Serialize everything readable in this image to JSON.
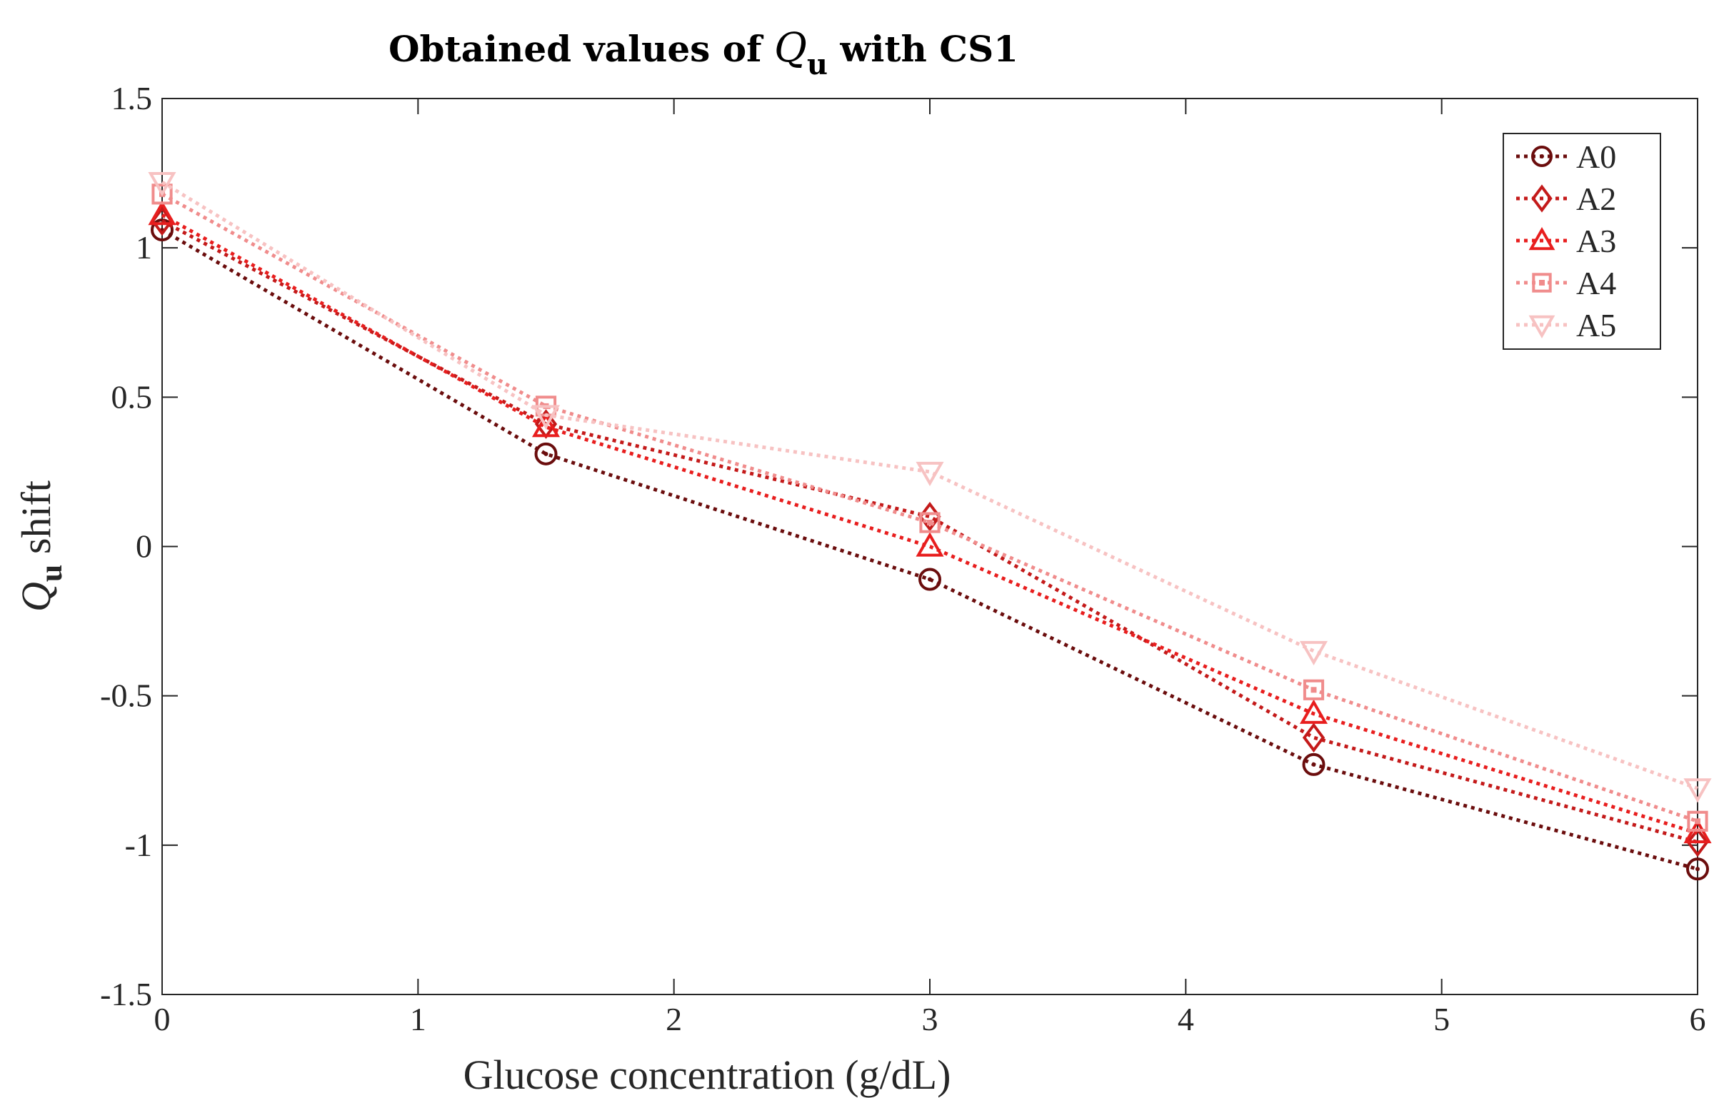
{
  "chart_data": {
    "type": "line",
    "title_parts": [
      "Obtained values of ",
      "Q",
      "u",
      " with CS1"
    ],
    "xlabel": "Glucose concentration (g/dL)",
    "ylabel_parts": [
      "Q",
      "u",
      " shift"
    ],
    "xlim": [
      0,
      6
    ],
    "ylim": [
      -1.5,
      1.5
    ],
    "xticks": [
      0,
      1,
      2,
      3,
      4,
      5,
      6
    ],
    "yticks": [
      -1.5,
      -1,
      -0.5,
      0,
      0.5,
      1,
      1.5
    ],
    "ytick_labels": [
      "-1.5",
      "-1",
      "-0.5",
      "0",
      "0.5",
      "1",
      "1.5"
    ],
    "xtick_labels": [
      "0",
      "1",
      "2",
      "3",
      "4",
      "5",
      "6"
    ],
    "grid": false,
    "legend_position": "top-right",
    "x": [
      0,
      1.5,
      3,
      4.5,
      6
    ],
    "series": [
      {
        "name": "A0",
        "marker": "circle",
        "color": "#6b0d0d",
        "values": [
          1.06,
          0.31,
          -0.11,
          -0.73,
          -1.08
        ]
      },
      {
        "name": "A2",
        "marker": "diamond",
        "color": "#c41a1a",
        "values": [
          1.09,
          0.41,
          0.1,
          -0.64,
          -0.99
        ]
      },
      {
        "name": "A3",
        "marker": "triangle-up",
        "color": "#e81e1e",
        "values": [
          1.11,
          0.4,
          0.0,
          -0.56,
          -0.96
        ]
      },
      {
        "name": "A4",
        "marker": "square",
        "color": "#f08c8c",
        "values": [
          1.18,
          0.47,
          0.08,
          -0.48,
          -0.92
        ]
      },
      {
        "name": "A5",
        "marker": "triangle-down",
        "color": "#f7c2c2",
        "values": [
          1.22,
          0.44,
          0.25,
          -0.35,
          -0.81
        ]
      }
    ]
  }
}
